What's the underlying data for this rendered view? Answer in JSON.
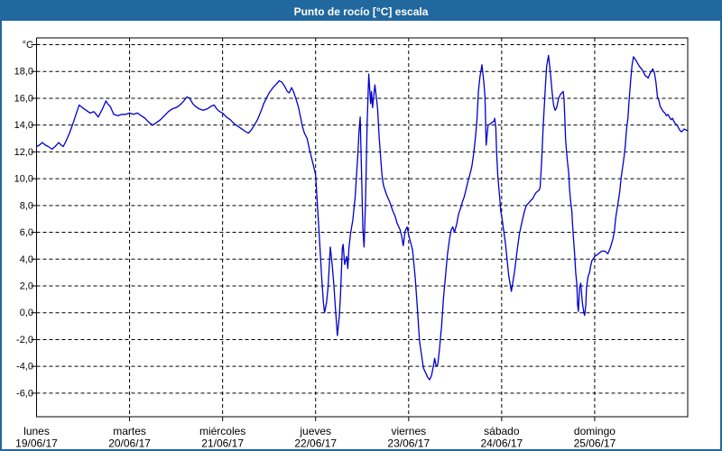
{
  "window": {
    "title": "Punto de rocío [°C] escala"
  },
  "colors": {
    "titlebar_bg": "#21689e",
    "frame_border": "#21689e",
    "title_text": "#ffffff",
    "line": "#0000cd",
    "grid": "#000000",
    "axis_text": "#000000",
    "plot_bg": "#ffffff"
  },
  "chart_data": {
    "type": "line",
    "title": "Punto de rocío [°C] escala",
    "ylabel": "°C",
    "grid": "dashed",
    "legend": "none",
    "y_axis": {
      "min": -6,
      "max": 20,
      "step": 2,
      "tick_labels": [
        "°C",
        "18,0",
        "16,0",
        "14,0",
        "12,0",
        "10,0",
        "8,0",
        "6,0",
        "4,0",
        "2,0",
        "0,0",
        "-2,0",
        "-4,0",
        "-6,0"
      ]
    },
    "x_axis": {
      "unit": "hours",
      "total_hours": 168,
      "hours_per_day": 24,
      "days": [
        {
          "name": "lunes",
          "date": "19/06/17"
        },
        {
          "name": "martes",
          "date": "20/06/17"
        },
        {
          "name": "miércoles",
          "date": "21/06/17"
        },
        {
          "name": "jueves",
          "date": "22/06/17"
        },
        {
          "name": "viernes",
          "date": "23/06/17"
        },
        {
          "name": "sábado",
          "date": "24/06/17"
        },
        {
          "name": "domingo",
          "date": "25/06/17"
        }
      ]
    },
    "series": [
      {
        "name": "Punto de rocío [°C]",
        "color": "#0000cd",
        "points": [
          [
            0,
            12.4
          ],
          [
            0.7,
            12.5
          ],
          [
            1.5,
            12.7
          ],
          [
            2.3,
            12.5
          ],
          [
            3,
            12.4
          ],
          [
            4,
            12.2
          ],
          [
            4.8,
            12.4
          ],
          [
            5.7,
            12.7
          ],
          [
            6.4,
            12.5
          ],
          [
            6.9,
            12.4
          ],
          [
            7.6,
            12.8
          ],
          [
            8.5,
            13.4
          ],
          [
            9.5,
            14.2
          ],
          [
            10.3,
            14.9
          ],
          [
            11,
            15.5
          ],
          [
            11.8,
            15.3
          ],
          [
            12.8,
            15.1
          ],
          [
            13.8,
            14.9
          ],
          [
            14.8,
            15.0
          ],
          [
            15.4,
            14.8
          ],
          [
            15.9,
            14.6
          ],
          [
            17,
            15.2
          ],
          [
            17.9,
            15.8
          ],
          [
            18.3,
            15.6
          ],
          [
            19,
            15.4
          ],
          [
            19.9,
            14.8
          ],
          [
            21,
            14.7
          ],
          [
            22,
            14.8
          ],
          [
            23,
            14.8
          ],
          [
            24,
            14.9
          ],
          [
            25,
            14.8
          ],
          [
            26,
            14.9
          ],
          [
            27,
            14.7
          ],
          [
            28,
            14.5
          ],
          [
            29,
            14.2
          ],
          [
            30,
            14.0
          ],
          [
            31,
            14.2
          ],
          [
            32,
            14.4
          ],
          [
            33,
            14.7
          ],
          [
            34,
            15.0
          ],
          [
            35,
            15.2
          ],
          [
            36,
            15.3
          ],
          [
            37,
            15.5
          ],
          [
            38,
            15.8
          ],
          [
            38.8,
            16.1
          ],
          [
            39.5,
            16.0
          ],
          [
            40.3,
            15.6
          ],
          [
            41,
            15.4
          ],
          [
            42,
            15.2
          ],
          [
            43,
            15.1
          ],
          [
            44,
            15.2
          ],
          [
            45,
            15.4
          ],
          [
            45.8,
            15.5
          ],
          [
            46.5,
            15.2
          ],
          [
            47.3,
            15.0
          ],
          [
            48,
            14.9
          ],
          [
            49,
            14.6
          ],
          [
            50,
            14.4
          ],
          [
            51,
            14.1
          ],
          [
            52,
            13.9
          ],
          [
            53,
            13.7
          ],
          [
            54,
            13.5
          ],
          [
            54.7,
            13.4
          ],
          [
            55.3,
            13.6
          ],
          [
            56,
            13.9
          ],
          [
            57,
            14.4
          ],
          [
            58,
            15.1
          ],
          [
            58.6,
            15.6
          ],
          [
            59.3,
            16.0
          ],
          [
            60,
            16.4
          ],
          [
            61,
            16.8
          ],
          [
            62,
            17.1
          ],
          [
            62.6,
            17.3
          ],
          [
            63.3,
            17.2
          ],
          [
            64,
            16.9
          ],
          [
            64.7,
            16.5
          ],
          [
            65.2,
            16.4
          ],
          [
            65.8,
            16.8
          ],
          [
            66.3,
            16.5
          ],
          [
            67,
            15.9
          ],
          [
            67.6,
            15.3
          ],
          [
            68.1,
            14.6
          ],
          [
            68.6,
            13.9
          ],
          [
            69.1,
            13.4
          ],
          [
            69.8,
            13.0
          ],
          [
            70.4,
            12.2
          ],
          [
            71,
            11.5
          ],
          [
            71.5,
            10.9
          ],
          [
            72,
            10.3
          ],
          [
            72.4,
            8.4
          ],
          [
            73,
            5.5
          ],
          [
            73.5,
            2.9
          ],
          [
            74,
            0.8
          ],
          [
            74.3,
            0.0
          ],
          [
            74.8,
            0.7
          ],
          [
            75.2,
            1.9
          ],
          [
            75.8,
            4.9
          ],
          [
            76.3,
            3.5
          ],
          [
            76.7,
            2.1
          ],
          [
            77.1,
            0.4
          ],
          [
            77.6,
            -1.7
          ],
          [
            78.1,
            -0.3
          ],
          [
            78.4,
            1.2
          ],
          [
            78.9,
            4.8
          ],
          [
            79.1,
            5.1
          ],
          [
            79.5,
            3.6
          ],
          [
            80,
            4.2
          ],
          [
            80.3,
            3.3
          ],
          [
            80.6,
            4.8
          ],
          [
            81,
            5.9
          ],
          [
            81.6,
            6.9
          ],
          [
            82.2,
            8.6
          ],
          [
            82.9,
            11.8
          ],
          [
            83.2,
            13.5
          ],
          [
            83.5,
            14.6
          ],
          [
            83.8,
            11.0
          ],
          [
            84.2,
            6.2
          ],
          [
            84.5,
            4.9
          ],
          [
            84.9,
            8.5
          ],
          [
            85.3,
            14.1
          ],
          [
            85.7,
            17.8
          ],
          [
            86.2,
            15.6
          ],
          [
            86.4,
            16.5
          ],
          [
            86.7,
            15.3
          ],
          [
            87.3,
            17.0
          ],
          [
            87.7,
            16.0
          ],
          [
            88,
            15.2
          ],
          [
            88.4,
            13.1
          ],
          [
            89.1,
            10.3
          ],
          [
            89.5,
            9.5
          ],
          [
            90.3,
            8.8
          ],
          [
            91.2,
            8.2
          ],
          [
            91.9,
            7.6
          ],
          [
            92.5,
            7.2
          ],
          [
            93,
            6.7
          ],
          [
            93.8,
            6.2
          ],
          [
            94.2,
            5.7
          ],
          [
            94.6,
            5.0
          ],
          [
            95.1,
            6.1
          ],
          [
            95.6,
            6.4
          ],
          [
            96,
            5.8
          ],
          [
            97,
            4.7
          ],
          [
            97.7,
            2.6
          ],
          [
            98.3,
            0.1
          ],
          [
            98.8,
            -2.1
          ],
          [
            99.4,
            -3.3
          ],
          [
            99.8,
            -4.1
          ],
          [
            100.4,
            -4.5
          ],
          [
            100.9,
            -4.8
          ],
          [
            101.4,
            -5.0
          ],
          [
            101.9,
            -4.7
          ],
          [
            102.5,
            -3.8
          ],
          [
            102.7,
            -3.4
          ],
          [
            103.1,
            -4.0
          ],
          [
            103.5,
            -3.9
          ],
          [
            103.9,
            -2.9
          ],
          [
            104.5,
            -1.0
          ],
          [
            105,
            1.1
          ],
          [
            105.6,
            3.0
          ],
          [
            106,
            4.3
          ],
          [
            106.6,
            5.6
          ],
          [
            107,
            6.2
          ],
          [
            107.4,
            6.4
          ],
          [
            107.8,
            6.0
          ],
          [
            108.4,
            6.6
          ],
          [
            108.9,
            7.4
          ],
          [
            109.3,
            7.7
          ],
          [
            109.9,
            8.3
          ],
          [
            110.3,
            8.6
          ],
          [
            110.9,
            9.3
          ],
          [
            111.3,
            9.8
          ],
          [
            111.8,
            10.3
          ],
          [
            112.3,
            10.9
          ],
          [
            112.8,
            11.9
          ],
          [
            113.2,
            13.0
          ],
          [
            113.6,
            14.3
          ],
          [
            114,
            16.5
          ],
          [
            114.4,
            17.6
          ],
          [
            114.9,
            18.5
          ],
          [
            115.4,
            17.2
          ],
          [
            115.7,
            16.1
          ],
          [
            116,
            12.5
          ],
          [
            116.5,
            14.0
          ],
          [
            117.1,
            14.1
          ],
          [
            118,
            14.3
          ],
          [
            118.2,
            14.5
          ],
          [
            118.5,
            13.8
          ],
          [
            118.7,
            11.9
          ],
          [
            119,
            10.2
          ],
          [
            119.4,
            8.9
          ],
          [
            119.8,
            7.5
          ],
          [
            120,
            7.2
          ],
          [
            121,
            5.1
          ],
          [
            121.8,
            2.8
          ],
          [
            122.5,
            1.6
          ],
          [
            123.3,
            3.0
          ],
          [
            124.1,
            4.9
          ],
          [
            124.6,
            5.9
          ],
          [
            125.1,
            6.6
          ],
          [
            125.9,
            7.6
          ],
          [
            126.4,
            8.0
          ],
          [
            127,
            8.2
          ],
          [
            127.6,
            8.4
          ],
          [
            128,
            8.5
          ],
          [
            128.5,
            8.8
          ],
          [
            129,
            9.0
          ],
          [
            129.5,
            9.1
          ],
          [
            129.9,
            9.3
          ],
          [
            130.3,
            11.2
          ],
          [
            130.7,
            13.8
          ],
          [
            131,
            15.4
          ],
          [
            131.3,
            17.0
          ],
          [
            131.6,
            18.4
          ],
          [
            132.1,
            19.2
          ],
          [
            132.6,
            17.8
          ],
          [
            133,
            16.5
          ],
          [
            133.4,
            15.5
          ],
          [
            133.8,
            15.1
          ],
          [
            134.2,
            15.3
          ],
          [
            134.7,
            16.0
          ],
          [
            135.2,
            16.3
          ],
          [
            135.9,
            16.5
          ],
          [
            136.1,
            15.9
          ],
          [
            136.3,
            14.4
          ],
          [
            136.5,
            12.9
          ],
          [
            136.9,
            11.5
          ],
          [
            137.3,
            10.4
          ],
          [
            137.5,
            9.3
          ],
          [
            137.8,
            8.3
          ],
          [
            138.1,
            7.6
          ],
          [
            138.3,
            6.6
          ],
          [
            138.6,
            5.3
          ],
          [
            138.8,
            4.5
          ],
          [
            139.1,
            3.0
          ],
          [
            139.4,
            2.1
          ],
          [
            139.6,
            0.6
          ],
          [
            139.8,
            0.1
          ],
          [
            140.1,
            1.9
          ],
          [
            140.4,
            2.2
          ],
          [
            140.8,
            0.8
          ],
          [
            141.2,
            0.0
          ],
          [
            141.4,
            -0.2
          ],
          [
            141.7,
            0.6
          ],
          [
            141.9,
            1.9
          ],
          [
            142.3,
            2.7
          ],
          [
            142.7,
            3.0
          ],
          [
            142.9,
            3.4
          ],
          [
            143.3,
            3.9
          ],
          [
            143.6,
            4.0
          ],
          [
            144,
            4.2
          ],
          [
            145,
            4.4
          ],
          [
            145.8,
            4.6
          ],
          [
            146.6,
            4.6
          ],
          [
            147.4,
            4.4
          ],
          [
            147.7,
            4.6
          ],
          [
            148.1,
            4.9
          ],
          [
            148.7,
            5.5
          ],
          [
            149.1,
            6.1
          ],
          [
            149.4,
            7.0
          ],
          [
            149.7,
            7.6
          ],
          [
            150.1,
            8.3
          ],
          [
            150.5,
            9.1
          ],
          [
            150.8,
            10.0
          ],
          [
            151.2,
            10.8
          ],
          [
            151.6,
            11.7
          ],
          [
            151.9,
            12.5
          ],
          [
            152.2,
            13.6
          ],
          [
            152.6,
            14.6
          ],
          [
            152.8,
            15.5
          ],
          [
            153,
            16.3
          ],
          [
            153.3,
            17.4
          ],
          [
            153.6,
            18.4
          ],
          [
            154,
            19.1
          ],
          [
            154.7,
            18.8
          ],
          [
            155.5,
            18.4
          ],
          [
            156.3,
            18.1
          ],
          [
            157,
            17.7
          ],
          [
            157.5,
            17.6
          ],
          [
            157.8,
            17.5
          ],
          [
            158.2,
            17.8
          ],
          [
            159,
            18.2
          ],
          [
            159.4,
            17.9
          ],
          [
            159.8,
            17.2
          ],
          [
            160.2,
            16.1
          ],
          [
            160.6,
            15.8
          ],
          [
            160.9,
            15.4
          ],
          [
            161.3,
            15.2
          ],
          [
            161.7,
            15.0
          ],
          [
            162.1,
            14.9
          ],
          [
            162.5,
            14.7
          ],
          [
            162.9,
            14.8
          ],
          [
            163.3,
            14.6
          ],
          [
            163.7,
            14.4
          ],
          [
            164.1,
            14.5
          ],
          [
            164.4,
            14.3
          ],
          [
            164.8,
            14.1
          ],
          [
            165.2,
            14.0
          ],
          [
            165.6,
            13.8
          ],
          [
            166,
            13.6
          ],
          [
            166.4,
            13.5
          ],
          [
            166.8,
            13.6
          ],
          [
            167.1,
            13.7
          ],
          [
            167.8,
            13.6
          ]
        ]
      }
    ]
  }
}
